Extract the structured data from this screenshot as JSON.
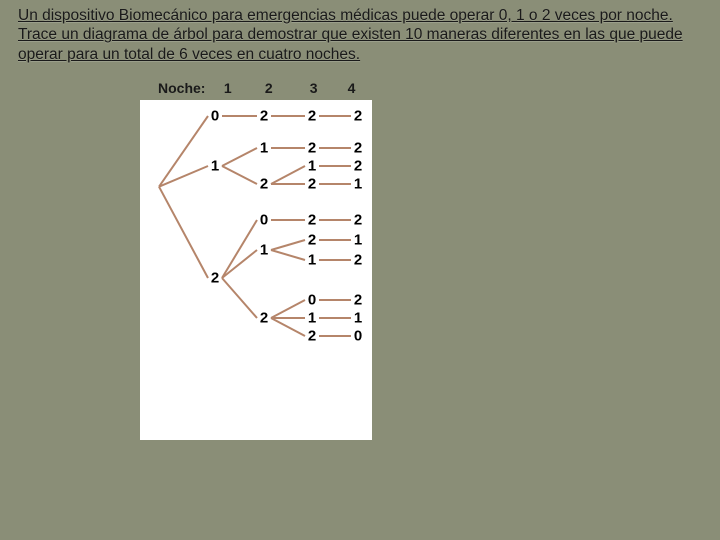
{
  "problem_text": "Un dispositivo Biomecánico para emergencias médicas puede operar 0, 1 o 2 veces por noche. Trace un diagrama de árbol para demostrar que existen 10 maneras diferentes en las que puede operar para un total de 6 veces en cuatro noches.",
  "header": {
    "prefix": "Noche:",
    "h1": "1",
    "h2": "2",
    "h3": "3",
    "h4": "4"
  },
  "layout": {
    "cols": {
      "root": 18,
      "c1": 75,
      "c2": 124,
      "c3": 172,
      "c4": 218
    },
    "rows": {
      "r0222": 16,
      "r1122": 48,
      "r1212": 66,
      "r1221": 84,
      "r2022": 120,
      "r2_1": 140,
      "r2121_b": 160,
      "r2202": 200,
      "r2_mid": 218,
      "r2220": 236,
      "node1_mid": 66,
      "node2_mid": 178,
      "n20_mid": 120,
      "n21_mid": 150,
      "n22_mid": 218,
      "n212_mid": 140,
      "n211_mid": 160,
      "n222_mid": 200,
      "n221_mid": 218,
      "n220_mid": 236
    }
  },
  "tree": {
    "root_y_key": null,
    "level1": [
      {
        "label": "0",
        "ykey": "r0222",
        "children": [
          {
            "label": "2",
            "ykey": "r0222",
            "children": [
              {
                "label": "2",
                "ykey": "r0222",
                "children": [
                  {
                    "label": "2",
                    "ykey": "r0222"
                  }
                ]
              }
            ]
          }
        ]
      },
      {
        "label": "1",
        "ykey": "node1_mid",
        "children": [
          {
            "label": "1",
            "ykey": "r1122",
            "children": [
              {
                "label": "2",
                "ykey": "r1122",
                "children": [
                  {
                    "label": "2",
                    "ykey": "r1122"
                  }
                ]
              }
            ]
          },
          {
            "label": "2",
            "ykey": "r1221",
            "children": [
              {
                "label": "1",
                "ykey": "r1212",
                "children": [
                  {
                    "label": "2",
                    "ykey": "r1212"
                  }
                ]
              },
              {
                "label": "2",
                "ykey": "r1221",
                "children": [
                  {
                    "label": "1",
                    "ykey": "r1221"
                  }
                ]
              }
            ]
          }
        ]
      },
      {
        "label": "2",
        "ykey": "node2_mid",
        "children": [
          {
            "label": "0",
            "ykey": "n20_mid",
            "children": [
              {
                "label": "2",
                "ykey": "r2022",
                "children": [
                  {
                    "label": "2",
                    "ykey": "r2022"
                  }
                ]
              }
            ]
          },
          {
            "label": "1",
            "ykey": "n21_mid",
            "children": [
              {
                "label": "2",
                "ykey": "n212_mid",
                "children": [
                  {
                    "label": "1",
                    "ykey": "r2_1"
                  }
                ]
              },
              {
                "label": "1",
                "ykey": "n211_mid",
                "children": [
                  {
                    "label": "2",
                    "ykey": "r2121_b"
                  }
                ]
              }
            ]
          },
          {
            "label": "2",
            "ykey": "n22_mid",
            "children": [
              {
                "label": "0",
                "ykey": "n222_mid",
                "children": [
                  {
                    "label": "2",
                    "ykey": "r2202"
                  }
                ]
              },
              {
                "label": "1",
                "ykey": "n221_mid",
                "children": [
                  {
                    "label": "1",
                    "ykey": "r2_mid"
                  }
                ]
              },
              {
                "label": "2",
                "ykey": "n220_mid",
                "children": [
                  {
                    "label": "0",
                    "ykey": "r2220"
                  }
                ]
              }
            ]
          }
        ]
      }
    ]
  },
  "style": {
    "edge_color": "#b5856a",
    "edge_width": 2,
    "node_fontsize": 15
  }
}
